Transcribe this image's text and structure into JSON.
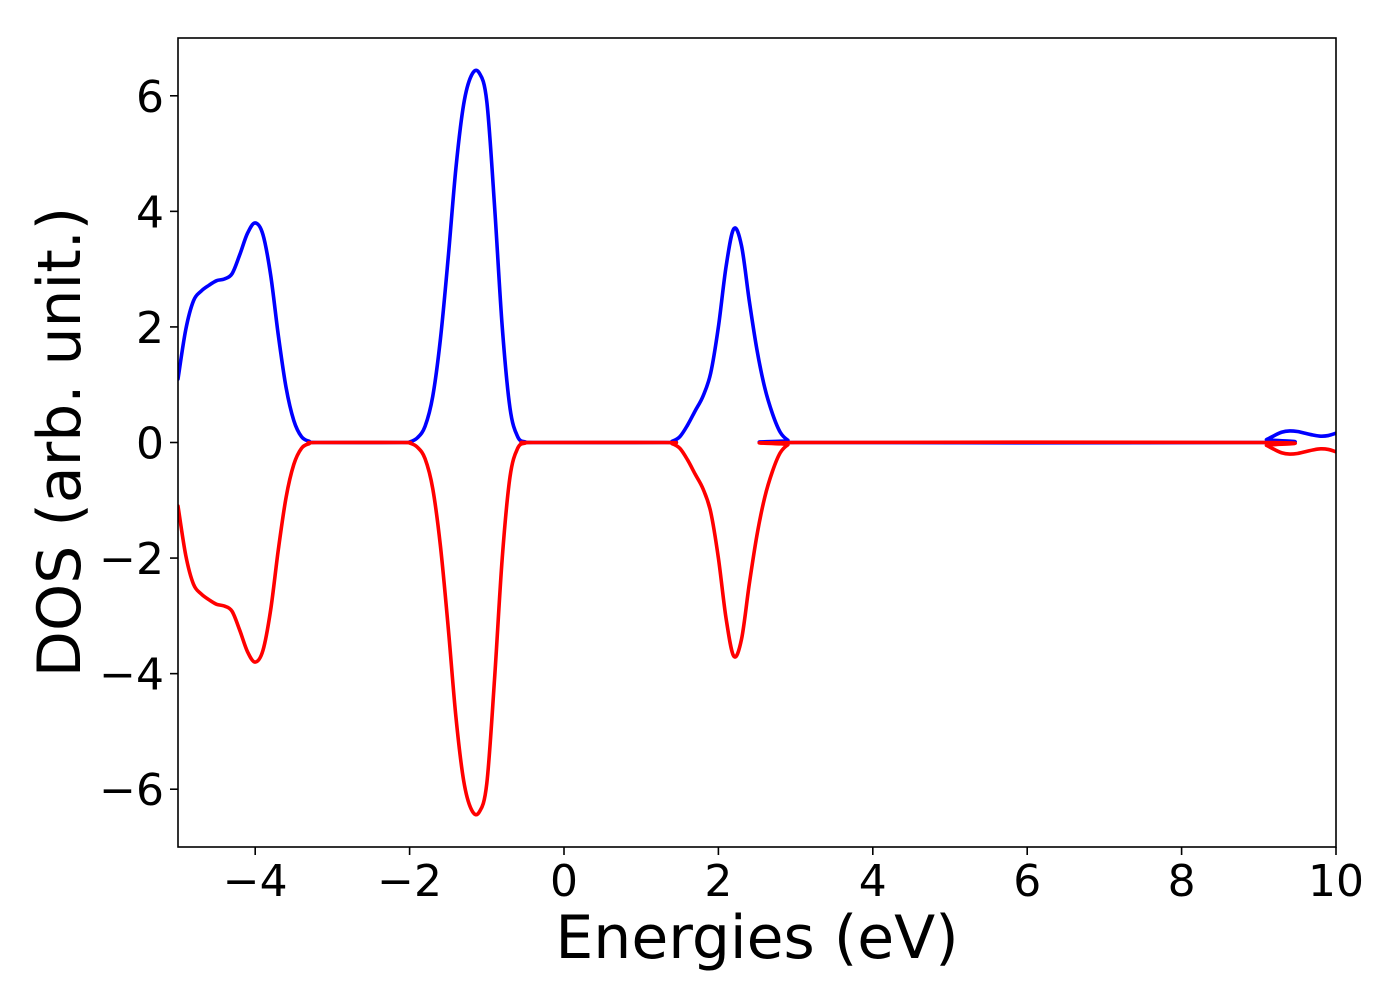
{
  "chart_data": {
    "type": "line",
    "xlabel": "Energies (eV)",
    "ylabel": "DOS (arb. unit.)",
    "xlim": [
      -5,
      10
    ],
    "ylim": [
      -7,
      7
    ],
    "xticks": [
      -4,
      -2,
      0,
      2,
      4,
      6,
      8,
      10
    ],
    "yticks": [
      -6,
      -4,
      -2,
      0,
      2,
      4,
      6
    ],
    "xtick_labels": [
      "−4",
      "−2",
      "0",
      "2",
      "4",
      "6",
      "8",
      "10"
    ],
    "ytick_labels": [
      "−6",
      "−4",
      "−2",
      "0",
      "2",
      "4",
      "6"
    ],
    "grid": false,
    "series": [
      {
        "color": "#0000ff",
        "points": [
          [
            -5.0,
            1.1
          ],
          [
            -4.9,
            1.95
          ],
          [
            -4.8,
            2.45
          ],
          [
            -4.7,
            2.62
          ],
          [
            -4.6,
            2.72
          ],
          [
            -4.5,
            2.8
          ],
          [
            -4.4,
            2.83
          ],
          [
            -4.3,
            2.92
          ],
          [
            -4.2,
            3.25
          ],
          [
            -4.1,
            3.62
          ],
          [
            -4.0,
            3.8
          ],
          [
            -3.9,
            3.6
          ],
          [
            -3.8,
            2.9
          ],
          [
            -3.7,
            1.85
          ],
          [
            -3.6,
            0.95
          ],
          [
            -3.5,
            0.38
          ],
          [
            -3.4,
            0.1
          ],
          [
            -3.3,
            0.02
          ],
          [
            -3.2,
            0.0
          ],
          [
            -2.1,
            0.0
          ],
          [
            -2.0,
            0.01
          ],
          [
            -1.9,
            0.08
          ],
          [
            -1.8,
            0.28
          ],
          [
            -1.7,
            0.8
          ],
          [
            -1.6,
            1.8
          ],
          [
            -1.5,
            3.2
          ],
          [
            -1.4,
            4.75
          ],
          [
            -1.3,
            5.85
          ],
          [
            -1.2,
            6.35
          ],
          [
            -1.1,
            6.4
          ],
          [
            -1.0,
            5.9
          ],
          [
            -0.9,
            4.1
          ],
          [
            -0.8,
            2.0
          ],
          [
            -0.7,
            0.6
          ],
          [
            -0.6,
            0.1
          ],
          [
            -0.5,
            0.01
          ],
          [
            -0.4,
            0.0
          ],
          [
            1.3,
            0.0
          ],
          [
            1.4,
            0.02
          ],
          [
            1.5,
            0.1
          ],
          [
            1.6,
            0.3
          ],
          [
            1.7,
            0.55
          ],
          [
            1.8,
            0.8
          ],
          [
            1.9,
            1.2
          ],
          [
            2.0,
            2.0
          ],
          [
            2.1,
            3.05
          ],
          [
            2.2,
            3.7
          ],
          [
            2.3,
            3.4
          ],
          [
            2.4,
            2.45
          ],
          [
            2.5,
            1.6
          ],
          [
            2.6,
            0.95
          ],
          [
            2.7,
            0.5
          ],
          [
            2.8,
            0.18
          ],
          [
            2.9,
            0.04
          ],
          [
            3.0,
            0.0
          ],
          [
            9.0,
            0.0
          ],
          [
            9.1,
            0.05
          ],
          [
            9.2,
            0.12
          ],
          [
            9.3,
            0.18
          ],
          [
            9.4,
            0.2
          ],
          [
            9.5,
            0.19
          ],
          [
            9.6,
            0.16
          ],
          [
            9.7,
            0.13
          ],
          [
            9.8,
            0.11
          ],
          [
            9.9,
            0.12
          ],
          [
            10.0,
            0.16
          ]
        ]
      },
      {
        "color": "#ff0000",
        "points": [
          [
            -5.0,
            -1.1
          ],
          [
            -4.9,
            -1.95
          ],
          [
            -4.8,
            -2.45
          ],
          [
            -4.7,
            -2.62
          ],
          [
            -4.6,
            -2.72
          ],
          [
            -4.5,
            -2.8
          ],
          [
            -4.4,
            -2.83
          ],
          [
            -4.3,
            -2.92
          ],
          [
            -4.2,
            -3.25
          ],
          [
            -4.1,
            -3.62
          ],
          [
            -4.0,
            -3.8
          ],
          [
            -3.9,
            -3.6
          ],
          [
            -3.8,
            -2.9
          ],
          [
            -3.7,
            -1.85
          ],
          [
            -3.6,
            -0.95
          ],
          [
            -3.5,
            -0.38
          ],
          [
            -3.4,
            -0.1
          ],
          [
            -3.3,
            -0.02
          ],
          [
            -3.2,
            0.0
          ],
          [
            -2.1,
            0.0
          ],
          [
            -2.0,
            -0.01
          ],
          [
            -1.9,
            -0.08
          ],
          [
            -1.8,
            -0.28
          ],
          [
            -1.7,
            -0.8
          ],
          [
            -1.6,
            -1.8
          ],
          [
            -1.5,
            -3.2
          ],
          [
            -1.4,
            -4.75
          ],
          [
            -1.3,
            -5.85
          ],
          [
            -1.2,
            -6.35
          ],
          [
            -1.1,
            -6.4
          ],
          [
            -1.0,
            -5.9
          ],
          [
            -0.9,
            -4.1
          ],
          [
            -0.8,
            -2.0
          ],
          [
            -0.7,
            -0.6
          ],
          [
            -0.6,
            -0.1
          ],
          [
            -0.5,
            -0.01
          ],
          [
            -0.4,
            0.0
          ],
          [
            1.3,
            0.0
          ],
          [
            1.4,
            -0.02
          ],
          [
            1.5,
            -0.1
          ],
          [
            1.6,
            -0.3
          ],
          [
            1.7,
            -0.55
          ],
          [
            1.8,
            -0.8
          ],
          [
            1.9,
            -1.2
          ],
          [
            2.0,
            -2.0
          ],
          [
            2.1,
            -3.05
          ],
          [
            2.2,
            -3.7
          ],
          [
            2.3,
            -3.4
          ],
          [
            2.4,
            -2.45
          ],
          [
            2.5,
            -1.6
          ],
          [
            2.6,
            -0.95
          ],
          [
            2.7,
            -0.5
          ],
          [
            2.8,
            -0.18
          ],
          [
            2.9,
            -0.04
          ],
          [
            3.0,
            0.0
          ],
          [
            9.0,
            0.0
          ],
          [
            9.1,
            -0.05
          ],
          [
            9.2,
            -0.12
          ],
          [
            9.3,
            -0.18
          ],
          [
            9.4,
            -0.2
          ],
          [
            9.5,
            -0.19
          ],
          [
            9.6,
            -0.16
          ],
          [
            9.7,
            -0.13
          ],
          [
            9.8,
            -0.11
          ],
          [
            9.9,
            -0.12
          ],
          [
            10.0,
            -0.16
          ]
        ]
      }
    ]
  }
}
